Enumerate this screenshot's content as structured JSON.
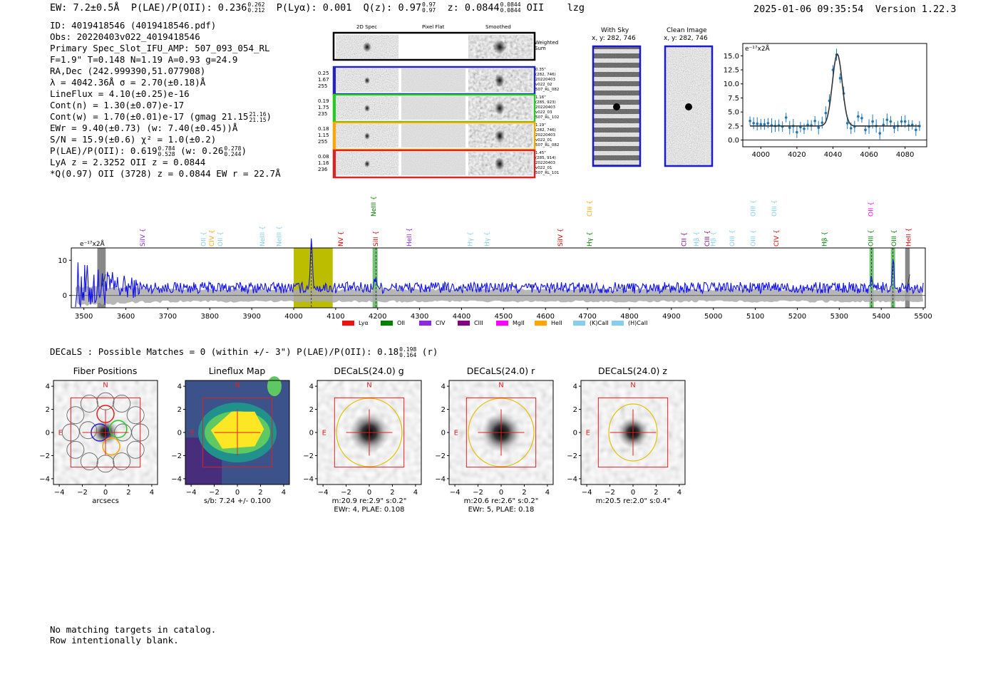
{
  "header": {
    "ew": "EW: 7.2±0.5Å",
    "plae_label": "P(LAE)/P(OII): 0.236",
    "plae_hi": "0.262",
    "plae_lo": "0.212",
    "plya": "P(Lyα): 0.001",
    "qz_label": "Q(z): 0.97",
    "qz_hi": "0.97",
    "qz_lo": "0.97",
    "z_label": "z: 0.0844",
    "z_hi": "0.0844",
    "z_lo": "0.0844",
    "line": "OII",
    "flag": "lzg",
    "timestamp": "2025-01-06 09:35:54",
    "version": "Version 1.22.3"
  },
  "info": {
    "id": "ID: 4019418546 (4019418546.pdf)",
    "obs": "Obs: 20220403v022_4019418546",
    "primary": "Primary Spec_Slot_IFU_AMP: 507_093_054_RL",
    "params": "F=1.9\"  T=0.148  N=1.19  A=0.93  g=24.9",
    "radec": "RA,Dec (242.999390,51.077908)",
    "lambda": "λ = 4042.36Å  σ = 2.70(±0.18)Å",
    "lineflux": "LineFlux = 4.10(±0.25)e-16",
    "contn": "Cont(n) = 1.30(±0.07)e-17",
    "contw": "Cont(w) = 1.70(±0.01)e-17 (gmag 21.15",
    "contw_hi": "21.16",
    "contw_lo": "21.15",
    "ewr": "EWr = 9.40(±0.73) (w: 7.40(±0.45))Å",
    "sn": "S/N = 15.9(±0.6)  χ² = 1.0(±0.2)",
    "plae": "P(LAE)/P(OII): 0.619",
    "plae_hi": "0.784",
    "plae_lo": "0.528",
    "plae_w": "(w: 0.26",
    "plae_w_hi": "0.278",
    "plae_w_lo": "0.244",
    "lya": "LyA z = 2.3252  OII z = 0.0844",
    "q": "*Q(0.97) OII (3728) z = 0.0844  EW r = 22.7Å"
  },
  "cutouts": {
    "col_2d": "2D Spec",
    "col_flat": "Pixel Flat",
    "col_smooth": "Smoothed",
    "weighted": "Weighted",
    "sum": "Sum",
    "fibers": [
      {
        "v1": "0.25",
        "v2": "1.67",
        "v3": "255",
        "r1": "0.35\"",
        "r2": "(282, 746)",
        "r3": "20220403",
        "r4": "v022_02",
        "r5": "507_RL_082",
        "color": "#2222cc"
      },
      {
        "v1": "0.19",
        "v2": "1.75",
        "v3": "235",
        "r1": "1.16\"",
        "r2": "(285, 923)",
        "r3": "20220403",
        "r4": "v022_03",
        "r5": "507_RL_102",
        "color": "#22cc22"
      },
      {
        "v1": "0.18",
        "v2": "1.15",
        "v3": "255",
        "r1": "1.19\"",
        "r2": "(282, 746)",
        "r3": "20220403",
        "r4": "v022_01",
        "r5": "507_RL_082",
        "color": "#ffa500"
      },
      {
        "v1": "0.08",
        "v2": "1.16",
        "v3": "236",
        "r1": "1.45\"",
        "r2": "(285, 914)",
        "r3": "20220403",
        "r4": "v022_01",
        "r5": "507_RL_101",
        "color": "#dd2222"
      }
    ]
  },
  "sky": {
    "with_sky": "With Sky",
    "with_sky_xy": "x, y: 282, 746",
    "clean": "Clean Image",
    "clean_xy": "x, y: 282, 746"
  },
  "fit_plot": {
    "unit": "e⁻¹⁷x2Å",
    "yticks": [
      "0.0",
      "2.5",
      "5.0",
      "7.5",
      "10.0",
      "12.5",
      "15.0"
    ],
    "xticks": [
      "4000",
      "4020",
      "4040",
      "4060",
      "4080"
    ],
    "center": 4042.4,
    "sigma": 2.7,
    "amp": 12.8,
    "cont": 2.5,
    "points_x": [
      3994,
      3996,
      3998,
      4000,
      4002,
      4004,
      4006,
      4008,
      4010,
      4012,
      4014,
      4016,
      4018,
      4020,
      4022,
      4024,
      4026,
      4028,
      4030,
      4032,
      4034,
      4036,
      4038,
      4040,
      4042,
      4044,
      4046,
      4048,
      4050,
      4052,
      4054,
      4056,
      4058,
      4060,
      4062,
      4064,
      4066,
      4068,
      4070,
      4072,
      4074,
      4076,
      4078,
      4080,
      4082,
      4084,
      4086,
      4088
    ],
    "points_y": [
      3.4,
      3.0,
      2.9,
      2.8,
      2.8,
      3.0,
      2.6,
      2.5,
      2.6,
      2.4,
      4.0,
      2.2,
      2.5,
      1.4,
      2.3,
      2.0,
      2.7,
      2.6,
      3.4,
      2.2,
      3.1,
      4.8,
      7.0,
      12.5,
      15.2,
      11.0,
      8.3,
      3.0,
      2.1,
      2.4,
      4.2,
      3.9,
      1.8,
      2.4,
      3.3,
      2.5,
      1.2,
      2.7,
      3.6,
      3.3,
      2.2,
      2.5,
      3.3,
      3.3,
      2.6,
      2.7,
      1.8,
      2.5
    ]
  },
  "spectrum": {
    "unit": "e⁻¹⁷x2Å",
    "yticks": [
      "0",
      "10"
    ],
    "xticks": [
      "3500",
      "3600",
      "3700",
      "3800",
      "3900",
      "4000",
      "4100",
      "4200",
      "4300",
      "4400",
      "4500",
      "4600",
      "4700",
      "4800",
      "4900",
      "5000",
      "5100",
      "5200",
      "5300",
      "5400",
      "5500"
    ],
    "xmin": 3470,
    "xmax": 5505,
    "lines": [
      {
        "name": "SiIV",
        "wave": 3640,
        "color": "#8a2be2",
        "row": 1
      },
      {
        "name": "OII",
        "wave": 3785,
        "color": "#87ceeb",
        "row": 1
      },
      {
        "name": "CIV",
        "wave": 3805,
        "color": "#ffa500",
        "row": 1
      },
      {
        "name": "OII",
        "wave": 3825,
        "color": "#87ceeb",
        "row": 1
      },
      {
        "name": "NeIII",
        "wave": 3925,
        "color": "#87ceeb",
        "row": 1
      },
      {
        "name": "NeIII",
        "wave": 3965,
        "color": "#87ceeb",
        "row": 1
      },
      {
        "name": "NV",
        "wave": 4112,
        "color": "#dd0000",
        "row": 1
      },
      {
        "name": "NeIII",
        "wave": 4190,
        "color": "#008000",
        "row": 0
      },
      {
        "name": "SiII",
        "wave": 4195,
        "color": "#dd0000",
        "row": 1
      },
      {
        "name": "HeII",
        "wave": 4275,
        "color": "#8a2be2",
        "row": 1
      },
      {
        "name": "Hγ",
        "wave": 4420,
        "color": "#87ceeb",
        "row": 1
      },
      {
        "name": "Hγ",
        "wave": 4460,
        "color": "#87ceeb",
        "row": 1
      },
      {
        "name": "SiIV",
        "wave": 4635,
        "color": "#dd0000",
        "row": 1
      },
      {
        "name": "CIII",
        "wave": 4705,
        "color": "#ffa500",
        "row": 0
      },
      {
        "name": "Hγ",
        "wave": 4705,
        "color": "#008000",
        "row": 1
      },
      {
        "name": "CII",
        "wave": 4930,
        "color": "#800080",
        "row": 1
      },
      {
        "name": "Hβ",
        "wave": 4960,
        "color": "#87ceeb",
        "row": 1
      },
      {
        "name": "CIII",
        "wave": 4985,
        "color": "#800080",
        "row": 1
      },
      {
        "name": "Hβ",
        "wave": 5000,
        "color": "#87ceeb",
        "row": 1
      },
      {
        "name": "OIII",
        "wave": 5045,
        "color": "#87ceeb",
        "row": 1
      },
      {
        "name": "OIII",
        "wave": 5095,
        "color": "#87ceeb",
        "row": 0
      },
      {
        "name": "OIII",
        "wave": 5095,
        "color": "#87ceeb",
        "row": 1
      },
      {
        "name": "OIII",
        "wave": 5145,
        "color": "#87ceeb",
        "row": 0
      },
      {
        "name": "CIV",
        "wave": 5150,
        "color": "#dd0000",
        "row": 1
      },
      {
        "name": "Hβ",
        "wave": 5265,
        "color": "#008000",
        "row": 1
      },
      {
        "name": "OIII",
        "wave": 5375,
        "color": "#008000",
        "row": 1
      },
      {
        "name": "OII",
        "wave": 5375,
        "color": "#ff00ff",
        "row": 0
      },
      {
        "name": "OIII",
        "wave": 5430,
        "color": "#008000",
        "row": 1
      },
      {
        "name": "HeII",
        "wave": 5465,
        "color": "#dd0000",
        "row": 1
      }
    ],
    "legend": [
      {
        "name": "Lyα",
        "color": "#ee1111"
      },
      {
        "name": "OII",
        "color": "#008000"
      },
      {
        "name": "CIV",
        "color": "#8a2be2"
      },
      {
        "name": "CIII",
        "color": "#800080"
      },
      {
        "name": "MgII",
        "color": "#ff00ff"
      },
      {
        "name": "HeII",
        "color": "#ffa500"
      },
      {
        "name": "(K)CaII",
        "color": "#87ceeb"
      },
      {
        "name": "(H)CaII",
        "color": "#87ceeb"
      }
    ]
  },
  "decals": {
    "summary": "DECaLS : Possible Matches = 0 (within +/- 3\")  P(LAE)/P(OII): 0.18",
    "summary_hi": "0.198",
    "summary_lo": "0.164",
    "summary_band": "(r)",
    "panels": [
      {
        "title": "Fiber Positions",
        "caption1": "arcsecs",
        "caption2": ""
      },
      {
        "title": "Lineflux Map",
        "caption1": "s/b: 7.24 +/- 0.100",
        "caption2": ""
      },
      {
        "title": "DECaLS(24.0) g",
        "caption1": "m:20.9  re:2.9\"  s:0.2\"",
        "caption2": "EWr: 4, PLAE: 0.108"
      },
      {
        "title": "DECaLS(24.0) r",
        "caption1": "m:20.6  re:2.6\"  s:0.2\"",
        "caption2": "EWr: 5, PLAE: 0.18"
      },
      {
        "title": "DECaLS(24.0) z",
        "caption1": "m:20.5  re:2.0\"  s:0.4\"",
        "caption2": ""
      }
    ],
    "compass_n": "N",
    "compass_e": "E",
    "yticks": [
      "4",
      "2",
      "0",
      "−2",
      "−4"
    ],
    "xticks": [
      "−4",
      "−2",
      "0",
      "2",
      "4"
    ]
  },
  "footer": {
    "line1": "No matching targets in catalog.",
    "line2": "Row intentionally blank."
  }
}
